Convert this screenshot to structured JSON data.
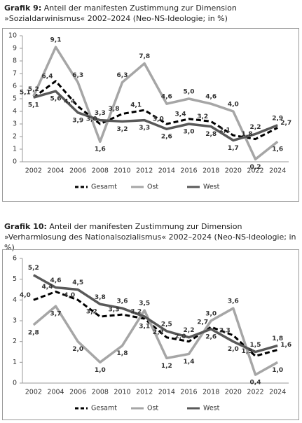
{
  "chart_data": [
    {
      "type": "line",
      "title_prefix": "Grafik 9:",
      "title": "Anteil der manifesten Zustimmung zur Dimension »Sozialdarwinismus« 2002–2024 (Neo-NS-Ideologie; in %)",
      "categories": [
        "2002",
        "2004",
        "2006",
        "2008",
        "2010",
        "2012",
        "2014",
        "2016",
        "2018",
        "2020",
        "2022",
        "2024"
      ],
      "ylim": [
        0,
        10
      ],
      "yticks": [
        0,
        1,
        2,
        3,
        4,
        5,
        6,
        7,
        8,
        9,
        10
      ],
      "grid": false,
      "legend": "bottom",
      "series": [
        {
          "name": "Gesamt",
          "color": "#000000",
          "dashed": true,
          "values": [
            5.1,
            6.4,
            4.4,
            3.0,
            3.8,
            4.1,
            3.0,
            3.4,
            3.2,
            2.1,
            1.8,
            2.7
          ],
          "value_labels": [
            "5,1",
            "6,4",
            "4,4",
            "3,0",
            "3,8",
            "4,1",
            "3,0",
            "3,4",
            "3,2",
            "2,1",
            "1,8",
            "2,7"
          ]
        },
        {
          "name": "Ost",
          "color": "#a6a6a6",
          "dashed": false,
          "values": [
            5.2,
            9.1,
            6.3,
            1.6,
            6.3,
            7.8,
            4.6,
            5.0,
            4.6,
            4.0,
            0.2,
            1.6
          ],
          "value_labels": [
            "5,2",
            "9,1",
            "6,3",
            "1,6",
            "6,3",
            "7,8",
            "4,6",
            "5,0",
            "4,6",
            "4,0",
            "0,2",
            "1,6"
          ]
        },
        {
          "name": "West",
          "color": "#595959",
          "dashed": false,
          "values": [
            5.1,
            5.6,
            3.9,
            3.3,
            3.2,
            3.3,
            2.6,
            3.0,
            2.8,
            1.7,
            2.2,
            2.9
          ],
          "value_labels": [
            "5,1",
            "5,6",
            "3,9",
            "3,3",
            "3,2",
            "3,3",
            "2,6",
            "3,0",
            "2,8",
            "1,7",
            "2,2",
            "2,9"
          ]
        }
      ]
    },
    {
      "type": "line",
      "title_prefix": "Grafik 10:",
      "title": "Anteil der manifesten Zustimmung zur Dimension »Verharmlosung des Nationalsozialismus« 2002–2024 (Neo-NS-Ideologie; in %)",
      "categories": [
        "2002",
        "2004",
        "2006",
        "2008",
        "2010",
        "2012",
        "2014",
        "2016",
        "2018",
        "2020",
        "2022",
        "2024"
      ],
      "ylim": [
        0,
        6
      ],
      "yticks": [
        0,
        1,
        2,
        3,
        4,
        5,
        6
      ],
      "grid": false,
      "legend": "bottom",
      "series": [
        {
          "name": "Gesamt",
          "color": "#000000",
          "dashed": true,
          "values": [
            4.0,
            4.4,
            4.0,
            3.2,
            3.3,
            3.1,
            2.2,
            2.0,
            2.7,
            2.3,
            1.3,
            1.6
          ],
          "value_labels": [
            "4,0",
            "4,4",
            "4,0",
            "3,2",
            "3,3",
            "3,1",
            "2,2",
            "2,0",
            "2,7",
            "2,3",
            "1,3",
            "1,6"
          ]
        },
        {
          "name": "Ost",
          "color": "#a6a6a6",
          "dashed": false,
          "values": [
            2.8,
            3.7,
            2.0,
            1.0,
            1.8,
            3.5,
            1.2,
            1.4,
            3.0,
            3.6,
            0.4,
            1.0
          ],
          "value_labels": [
            "2,8",
            "3,7",
            "2,0",
            "1,0",
            "1,8",
            "3,5",
            "1,2",
            "1,4",
            "3,0",
            "3,6",
            "0,4",
            "1,0"
          ]
        },
        {
          "name": "West",
          "color": "#595959",
          "dashed": false,
          "values": [
            5.2,
            4.6,
            4.5,
            3.8,
            3.6,
            3.2,
            2.5,
            2.2,
            2.6,
            2.0,
            1.5,
            1.8
          ],
          "value_labels": [
            "5,2",
            "4,6",
            "4,5",
            "3,8",
            "3,6",
            "3,2",
            "2,5",
            "2,2",
            "2,6",
            "2,0",
            "1,5",
            "1,8"
          ]
        }
      ]
    }
  ]
}
